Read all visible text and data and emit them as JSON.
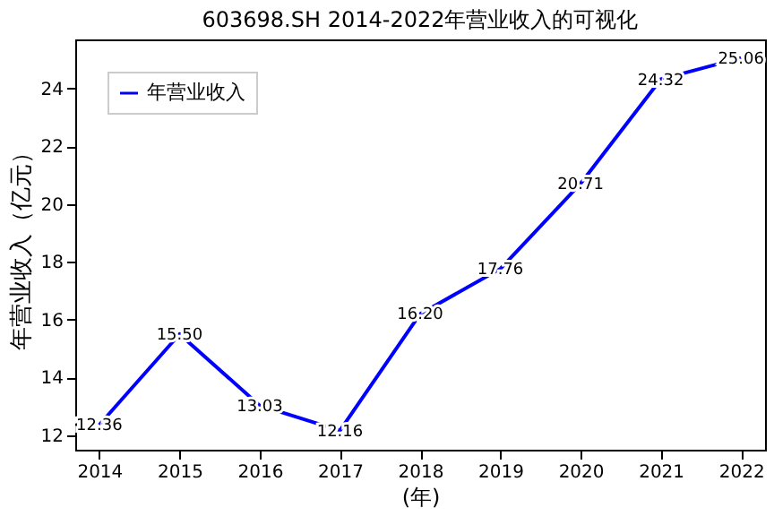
{
  "chart_data": {
    "type": "line",
    "title": "603698.SH 2014-2022年营业收入的可视化",
    "xlabel": "(年)",
    "ylabel": "年营业收入（亿元）",
    "categories": [
      "2014",
      "2015",
      "2016",
      "2017",
      "2018",
      "2019",
      "2020",
      "2021",
      "2022"
    ],
    "series": [
      {
        "name": "年营业收入",
        "color": "#0000ff",
        "values": [
          12.36,
          15.5,
          13.03,
          12.16,
          16.2,
          17.76,
          20.71,
          24.32,
          25.06
        ]
      }
    ],
    "value_labels": [
      "12.36",
      "15.50",
      "13.03",
      "12.16",
      "16.20",
      "17.76",
      "20.71",
      "24.32",
      "25.06"
    ],
    "ylim": [
      11.5,
      25.7
    ],
    "yticks": [
      12,
      14,
      16,
      18,
      20,
      22,
      24
    ],
    "grid": false,
    "legend": "top left",
    "marker": "none",
    "line_style": "solid"
  }
}
